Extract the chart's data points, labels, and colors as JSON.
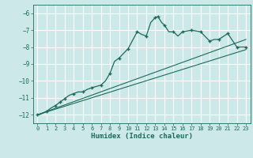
{
  "title": "",
  "xlabel": "Humidex (Indice chaleur)",
  "ylabel": "",
  "background_color": "#cce8e8",
  "grid_color": "#ffffff",
  "line_color": "#1a6b5a",
  "xlim": [
    -0.5,
    23.5
  ],
  "ylim": [
    -12.5,
    -5.5
  ],
  "yticks": [
    -12,
    -11,
    -10,
    -9,
    -8,
    -7,
    -6
  ],
  "xticks": [
    0,
    1,
    2,
    3,
    4,
    5,
    6,
    7,
    8,
    9,
    10,
    11,
    12,
    13,
    14,
    15,
    16,
    17,
    18,
    19,
    20,
    21,
    22,
    23
  ],
  "curve1_x": [
    0,
    0.3,
    0.6,
    1.0,
    1.5,
    2.0,
    2.5,
    3.0,
    3.5,
    4.0,
    4.5,
    5.0,
    5.5,
    6.0,
    7.0,
    7.5,
    8.0,
    8.5,
    9.0,
    10.0,
    11.0,
    11.5,
    12.0,
    12.5,
    13.0,
    13.3,
    13.7,
    14.0,
    14.5,
    15.0,
    15.5,
    16.0,
    16.5,
    17.0,
    17.5,
    18.0,
    19.0,
    19.5,
    20.0,
    21.0,
    22.0,
    23.0
  ],
  "curve1_y": [
    -12.0,
    -11.98,
    -11.9,
    -11.8,
    -11.6,
    -11.45,
    -11.25,
    -11.05,
    -10.85,
    -10.75,
    -10.65,
    -10.65,
    -10.5,
    -10.4,
    -10.25,
    -10.0,
    -9.55,
    -8.85,
    -8.65,
    -8.1,
    -7.1,
    -7.25,
    -7.35,
    -6.55,
    -6.25,
    -6.2,
    -6.55,
    -6.7,
    -7.1,
    -7.1,
    -7.35,
    -7.1,
    -7.05,
    -7.0,
    -7.05,
    -7.1,
    -7.65,
    -7.55,
    -7.55,
    -7.2,
    -8.0,
    -8.0
  ],
  "line2_x": [
    0,
    23
  ],
  "line2_y": [
    -12.0,
    -8.15
  ],
  "line3_x": [
    0,
    23
  ],
  "line3_y": [
    -12.0,
    -7.55
  ],
  "marker_x": [
    0,
    1,
    2,
    2.5,
    3,
    4,
    5,
    6,
    7,
    8,
    9,
    10,
    11,
    12,
    13,
    13.3,
    14,
    15,
    16,
    17,
    18,
    19,
    20,
    21,
    22,
    23
  ],
  "marker_y": [
    -12.0,
    -11.8,
    -11.45,
    -11.25,
    -11.05,
    -10.75,
    -10.65,
    -10.4,
    -10.25,
    -9.55,
    -8.65,
    -8.1,
    -7.1,
    -7.35,
    -6.25,
    -6.2,
    -6.7,
    -7.1,
    -7.1,
    -7.0,
    -7.1,
    -7.65,
    -7.55,
    -7.2,
    -8.0,
    -8.0
  ]
}
